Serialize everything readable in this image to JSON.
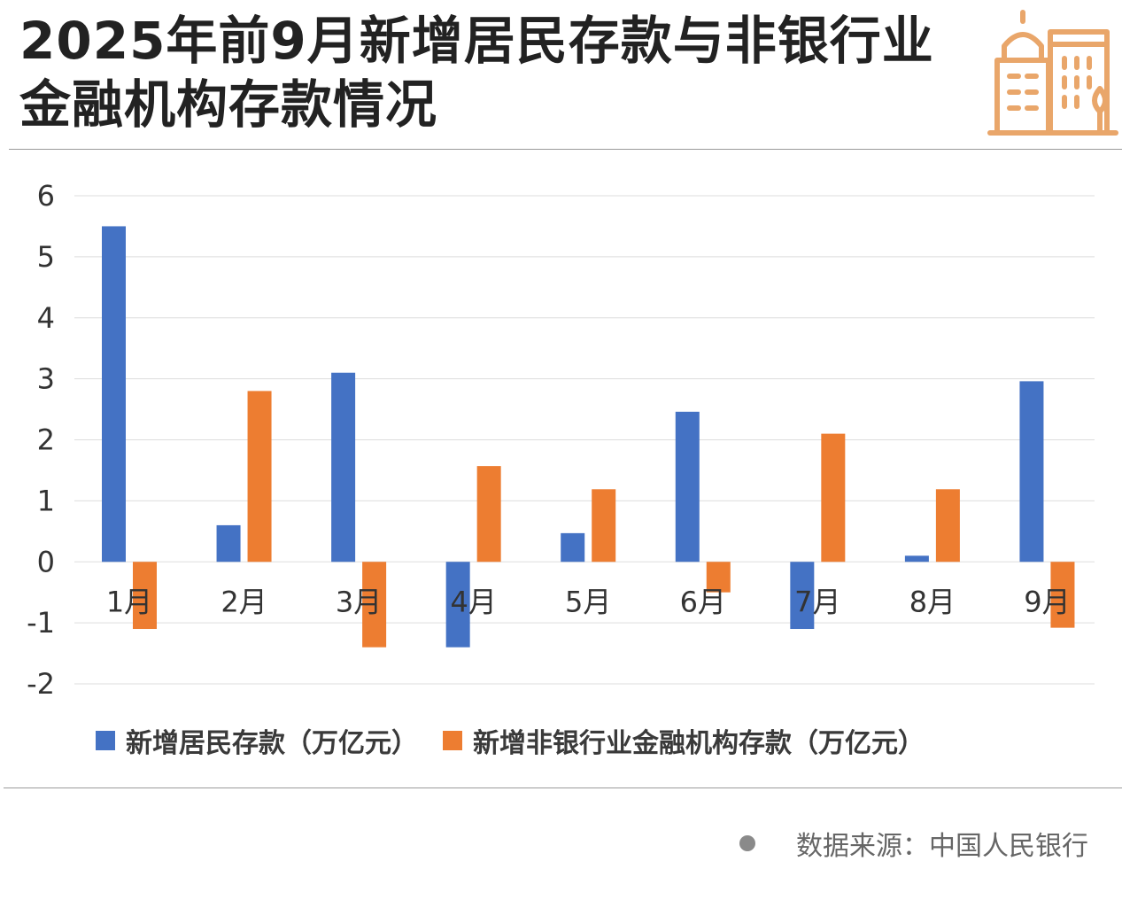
{
  "title": "2025年前9月新增居民存款与非银行业金融机构存款情况",
  "source": "数据来源：中国人民银行",
  "colors": {
    "series1": "#4472c4",
    "series2": "#ed7d31",
    "grid": "#dddddd"
  },
  "icon": "building-icon",
  "chart_data": {
    "type": "bar",
    "categories": [
      "1月",
      "2月",
      "3月",
      "4月",
      "5月",
      "6月",
      "7月",
      "8月",
      "9月"
    ],
    "series": [
      {
        "name": "新增居民存款（万亿元）",
        "values": [
          5.5,
          0.6,
          3.1,
          -1.4,
          0.47,
          2.46,
          -1.1,
          0.1,
          2.96
        ]
      },
      {
        "name": "新增非银行业金融机构存款（万亿元）",
        "values": [
          -1.1,
          2.8,
          -1.4,
          1.57,
          1.19,
          -0.5,
          2.1,
          1.19,
          -1.08
        ]
      }
    ],
    "y_ticks": [
      "6",
      "5",
      "4",
      "3",
      "2",
      "1",
      "0",
      "-1",
      "-2"
    ],
    "ylim": [
      -2,
      6
    ],
    "grid": true,
    "legend": "bottom"
  }
}
